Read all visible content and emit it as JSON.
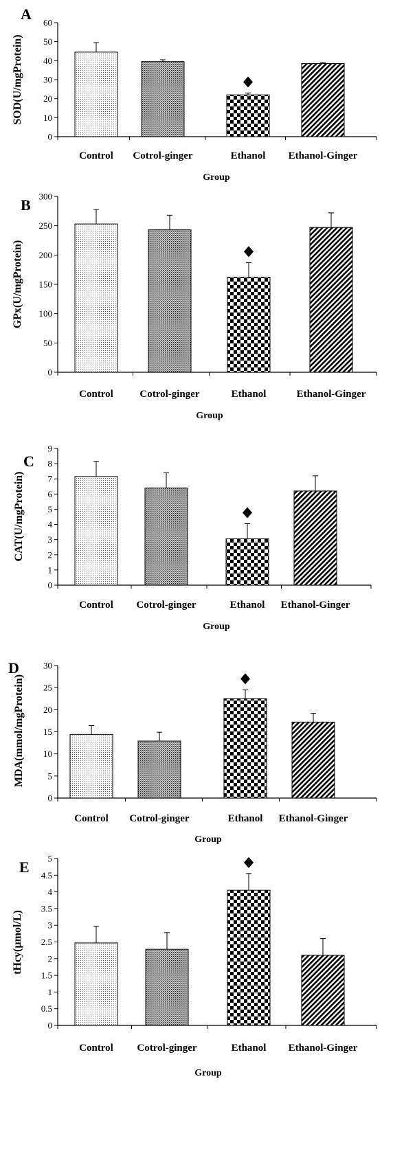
{
  "figure": {
    "panels": [
      {
        "panel_label": "A",
        "ylabel": "SOD(U/mgProtein)",
        "xlabel": "Group",
        "yticks": [
          "0",
          "10",
          "20",
          "30",
          "40",
          "50",
          "60"
        ]
      },
      {
        "panel_label": "B",
        "ylabel": "GPx(U/mgProtein)",
        "xlabel": "Group",
        "yticks": [
          "0",
          "50",
          "100",
          "150",
          "200",
          "250",
          "300"
        ]
      },
      {
        "panel_label": "C",
        "ylabel": "CAT(U/mgProtein)",
        "xlabel": "Group",
        "yticks": [
          "0",
          "1",
          "2",
          "3",
          "4",
          "5",
          "6",
          "7",
          "8",
          "9"
        ]
      },
      {
        "panel_label": "D",
        "ylabel": "MDA(mmol/mgProtein)",
        "xlabel": "Group",
        "yticks": [
          "0",
          "5",
          "10",
          "15",
          "20",
          "25",
          "30"
        ]
      },
      {
        "panel_label": "E",
        "ylabel": "tHcy(µmol/L)",
        "xlabel": "Group",
        "yticks": [
          "0",
          "0.5",
          "1",
          "1.5",
          "2",
          "2.5",
          "3",
          "3.5",
          "4",
          "4.5",
          "5"
        ]
      }
    ]
  },
  "chart_data": [
    {
      "type": "bar",
      "panel": "A",
      "title": "",
      "xlabel": "Group",
      "ylabel": "SOD(U/mgProtein)",
      "categories": [
        "Control",
        "Cotrol-ginger",
        "Ethanol",
        "Ethanol-Ginger"
      ],
      "values": [
        44.5,
        39.5,
        22.0,
        38.5
      ],
      "errors": [
        5.0,
        1.0,
        1.0,
        0.5
      ],
      "significance_marker": [
        false,
        false,
        true,
        false
      ],
      "ylim": [
        0,
        60
      ],
      "grid": false,
      "legend": "none"
    },
    {
      "type": "bar",
      "panel": "B",
      "title": "",
      "xlabel": "Group",
      "ylabel": "GPx(U/mgProtein)",
      "categories": [
        "Control",
        "Cotrol-ginger",
        "Ethanol",
        "Ethanol-Ginger"
      ],
      "values": [
        253,
        243,
        162,
        247
      ],
      "errors": [
        25,
        25,
        25,
        25
      ],
      "significance_marker": [
        false,
        false,
        true,
        false
      ],
      "ylim": [
        0,
        300
      ],
      "grid": false,
      "legend": "none"
    },
    {
      "type": "bar",
      "panel": "C",
      "title": "",
      "xlabel": "Group",
      "ylabel": "CAT(U/mgProtein)",
      "categories": [
        "Control",
        "Cotrol-ginger",
        "Ethanol",
        "Ethanol-Ginger"
      ],
      "values": [
        7.15,
        6.4,
        3.05,
        6.2
      ],
      "errors": [
        1.0,
        1.0,
        1.0,
        1.0
      ],
      "significance_marker": [
        false,
        false,
        true,
        false
      ],
      "ylim": [
        0,
        9
      ],
      "grid": false,
      "legend": "none"
    },
    {
      "type": "bar",
      "panel": "D",
      "title": "",
      "xlabel": "Group",
      "ylabel": "MDA(mmol/mgProtein)",
      "categories": [
        "Control",
        "Cotrol-ginger",
        "Ethanol",
        "Ethanol-Ginger"
      ],
      "values": [
        14.4,
        12.9,
        22.5,
        17.2
      ],
      "errors": [
        2.0,
        2.0,
        2.0,
        2.0
      ],
      "significance_marker": [
        false,
        false,
        true,
        false
      ],
      "ylim": [
        0,
        30
      ],
      "grid": false,
      "legend": "none"
    },
    {
      "type": "bar",
      "panel": "E",
      "title": "",
      "xlabel": "Group",
      "ylabel": "tHcy(µmol/L)",
      "categories": [
        "Control",
        "Cotrol-ginger",
        "Ethanol",
        "Ethanol-Ginger"
      ],
      "values": [
        2.47,
        2.28,
        4.05,
        2.1
      ],
      "errors": [
        0.5,
        0.5,
        0.5,
        0.5
      ],
      "significance_marker": [
        false,
        false,
        true,
        false
      ],
      "ylim": [
        0,
        5
      ],
      "grid": false,
      "legend": "none"
    }
  ]
}
